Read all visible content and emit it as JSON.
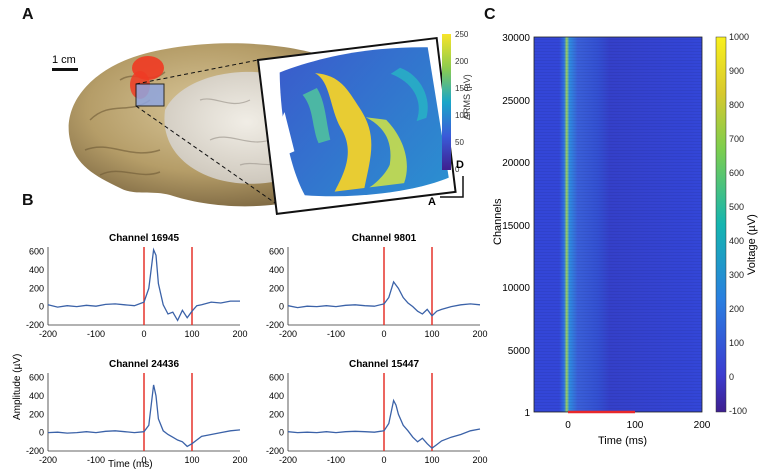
{
  "panels": {
    "a": {
      "label": "A",
      "scale_bar_label": "1 cm",
      "colorbar": {
        "label": "ΔRMS (µV)",
        "ticks": [
          "250",
          "200",
          "150",
          "100",
          "50",
          "0"
        ],
        "range": [
          0,
          250
        ]
      },
      "orientation": {
        "d": "D",
        "a": "A"
      }
    },
    "b": {
      "label": "B",
      "ylabel": "Amplitude (µV)",
      "xlabel": "Time (ms)",
      "traces": [
        {
          "title": "Channel 16945",
          "peak": 620
        },
        {
          "title": "Channel 9801",
          "peak": 270
        },
        {
          "title": "Channel 24436",
          "peak": 520
        },
        {
          "title": "Channel 15447",
          "peak": 350
        }
      ],
      "yticks": [
        "600",
        "400",
        "200",
        "0",
        "-200"
      ],
      "xticks": [
        "-200",
        "-100",
        "0",
        "100",
        "200"
      ]
    },
    "c": {
      "label": "C",
      "ylabel": "Channels",
      "xlabel": "Time (ms)",
      "yticks": [
        "30000",
        "25000",
        "20000",
        "15000",
        "10000",
        "5000",
        "1"
      ],
      "xticks": [
        "0",
        "100",
        "200"
      ],
      "colorbar": {
        "label": "Voltage (µV)",
        "ticks": [
          "1000",
          "900",
          "800",
          "700",
          "600",
          "500",
          "400",
          "300",
          "200",
          "100",
          "0",
          "-100"
        ],
        "range": [
          -100,
          1000
        ]
      }
    }
  },
  "chart_data": [
    {
      "type": "line",
      "title": "Channel 16945",
      "xlabel": "Time (ms)",
      "ylabel": "Amplitude (µV)",
      "xlim": [
        -200,
        200
      ],
      "ylim": [
        -200,
        650
      ],
      "x": [
        -200,
        -180,
        -160,
        -140,
        -120,
        -100,
        -80,
        -60,
        -40,
        -20,
        0,
        10,
        20,
        25,
        30,
        40,
        50,
        60,
        70,
        80,
        90,
        100,
        110,
        120,
        140,
        160,
        180,
        200
      ],
      "y": [
        20,
        -5,
        10,
        0,
        15,
        5,
        25,
        30,
        20,
        10,
        50,
        200,
        620,
        560,
        250,
        20,
        -80,
        -60,
        -150,
        -40,
        -120,
        -50,
        10,
        20,
        50,
        40,
        60,
        60
      ],
      "vlines": [
        0,
        100
      ]
    },
    {
      "type": "line",
      "title": "Channel 9801",
      "xlabel": "Time (ms)",
      "ylabel": "Amplitude (µV)",
      "xlim": [
        -200,
        200
      ],
      "ylim": [
        -200,
        650
      ],
      "x": [
        -200,
        -180,
        -160,
        -140,
        -120,
        -100,
        -80,
        -60,
        -40,
        -20,
        0,
        10,
        20,
        30,
        40,
        50,
        60,
        70,
        80,
        90,
        100,
        110,
        120,
        140,
        160,
        180,
        200
      ],
      "y": [
        10,
        -10,
        5,
        0,
        10,
        0,
        15,
        20,
        10,
        5,
        30,
        100,
        270,
        200,
        100,
        40,
        0,
        -50,
        -80,
        -30,
        -100,
        -50,
        -30,
        0,
        20,
        30,
        20
      ],
      "vlines": [
        0,
        100
      ]
    },
    {
      "type": "line",
      "title": "Channel 24436",
      "xlabel": "Time (ms)",
      "ylabel": "Amplitude (µV)",
      "xlim": [
        -200,
        200
      ],
      "ylim": [
        -200,
        650
      ],
      "x": [
        -200,
        -180,
        -160,
        -140,
        -120,
        -100,
        -80,
        -60,
        -40,
        -20,
        0,
        10,
        20,
        25,
        30,
        40,
        50,
        60,
        70,
        80,
        90,
        100,
        110,
        120,
        140,
        160,
        180,
        200
      ],
      "y": [
        0,
        5,
        -5,
        0,
        10,
        0,
        15,
        20,
        10,
        0,
        10,
        80,
        520,
        400,
        150,
        20,
        -20,
        -50,
        -80,
        -100,
        -150,
        -120,
        -80,
        -40,
        -20,
        0,
        20,
        30
      ],
      "vlines": [
        0,
        100
      ]
    },
    {
      "type": "line",
      "title": "Channel 15447",
      "xlabel": "Time (ms)",
      "ylabel": "Amplitude (µV)",
      "xlim": [
        -200,
        200
      ],
      "ylim": [
        -200,
        650
      ],
      "x": [
        -200,
        -180,
        -160,
        -140,
        -120,
        -100,
        -80,
        -60,
        -40,
        -20,
        0,
        10,
        20,
        25,
        30,
        40,
        50,
        60,
        70,
        80,
        90,
        100,
        110,
        120,
        140,
        160,
        180,
        200
      ],
      "y": [
        10,
        0,
        5,
        0,
        10,
        0,
        10,
        15,
        10,
        5,
        20,
        100,
        350,
        300,
        200,
        80,
        20,
        -50,
        -100,
        -60,
        -120,
        -170,
        -130,
        -90,
        -50,
        -20,
        20,
        40
      ],
      "vlines": [
        0,
        100
      ]
    },
    {
      "type": "heatmap",
      "xlabel": "Time (ms)",
      "ylabel": "Channels",
      "xlim": [
        -50,
        200
      ],
      "ylim": [
        1,
        30000
      ],
      "clim": [
        -100,
        1000
      ],
      "colorbar_label": "Voltage (µV)",
      "stimulus_bar": [
        0,
        100
      ]
    }
  ]
}
